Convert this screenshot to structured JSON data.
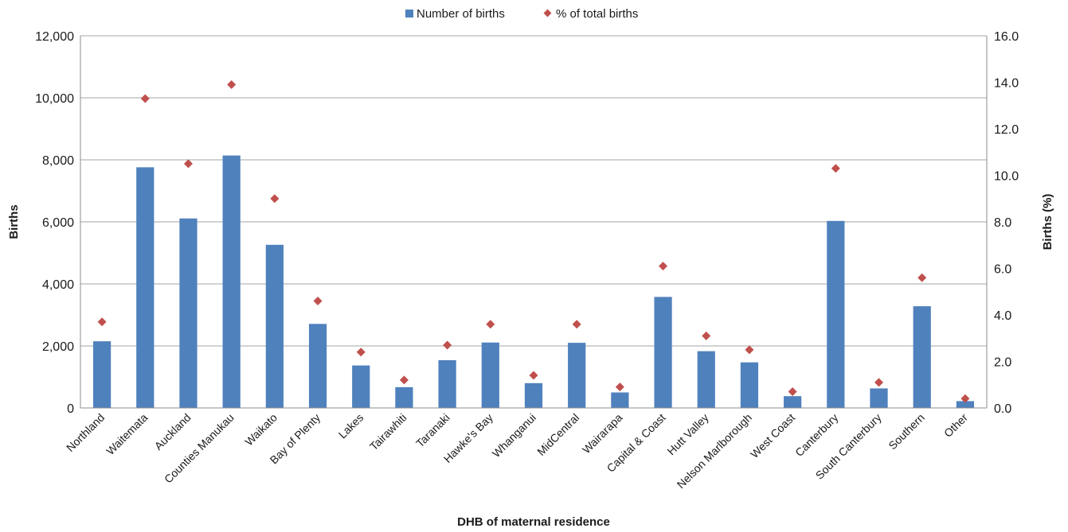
{
  "chart_data": {
    "type": "bar",
    "title": "",
    "xlabel": "DHB of maternal residence",
    "ylabel": "Births",
    "y2label": "Births (%)",
    "ylim": [
      0,
      12000
    ],
    "y2lim": [
      0,
      16
    ],
    "yticks": [
      "0",
      "2,000",
      "4,000",
      "6,000",
      "8,000",
      "10,000",
      "12,000"
    ],
    "y2ticks": [
      "0.0",
      "2.0",
      "4.0",
      "6.0",
      "8.0",
      "10.0",
      "12.0",
      "14.0",
      "16.0"
    ],
    "legend_position": "top-center",
    "grid": true,
    "categories": [
      "Northland",
      "Waitemata",
      "Auckland",
      "Counties Manukau",
      "Waikato",
      "Bay of Plenty",
      "Lakes",
      "Tairawhiti",
      "Taranaki",
      "Hawke's Bay",
      "Whanganui",
      "MidCentral",
      "Wairarapa",
      "Capital & Coast",
      "Hutt Valley",
      "Nelson Marlborough",
      "West Coast",
      "Canterbury",
      "South Canterbury",
      "Southern",
      "Other"
    ],
    "series": [
      {
        "name": "Number of births",
        "type": "bar",
        "axis": "left",
        "color": "#4f81bd",
        "values": [
          2150,
          7760,
          6110,
          8140,
          5260,
          2710,
          1370,
          670,
          1540,
          2110,
          800,
          2100,
          500,
          3580,
          1830,
          1470,
          380,
          6030,
          630,
          3280,
          220
        ]
      },
      {
        "name": "% of total births",
        "type": "scatter",
        "axis": "right",
        "color": "#c0504d",
        "values": [
          3.7,
          13.3,
          10.5,
          13.9,
          9.0,
          4.6,
          2.4,
          1.2,
          2.7,
          3.6,
          1.4,
          3.6,
          0.9,
          6.1,
          3.1,
          2.5,
          0.7,
          10.3,
          1.1,
          5.6,
          0.4
        ]
      }
    ]
  }
}
